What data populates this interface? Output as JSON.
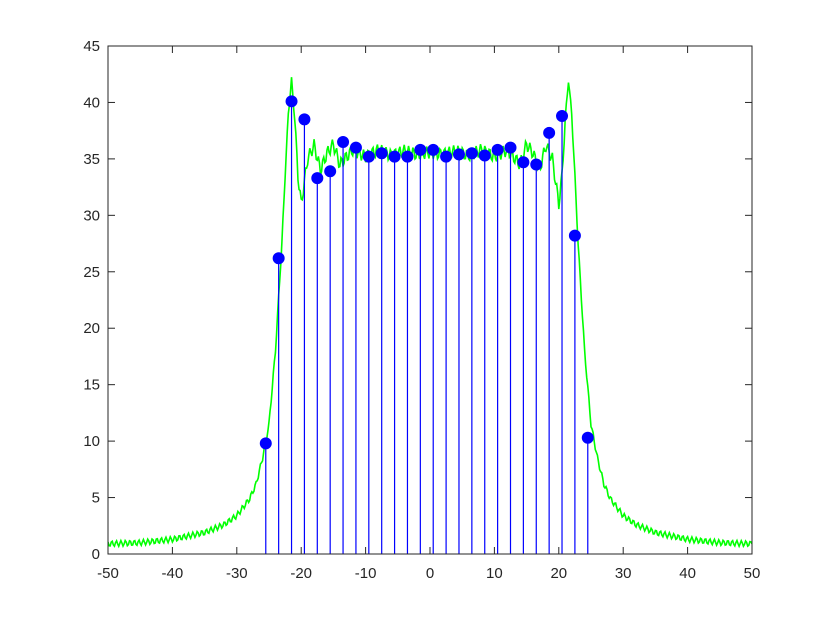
{
  "chart_data": {
    "type": "stem",
    "title": "",
    "xlabel": "",
    "ylabel": "",
    "xlim": [
      -50,
      50
    ],
    "ylim": [
      0,
      45
    ],
    "grid": false,
    "legend": "none",
    "x_ticks": [
      -50,
      -40,
      -30,
      -20,
      -10,
      0,
      10,
      20,
      30,
      40,
      50
    ],
    "y_ticks": [
      0,
      5,
      10,
      15,
      20,
      25,
      30,
      35,
      40,
      45
    ],
    "x_tick_labels": [
      "-50",
      "-40",
      "-30",
      "-20",
      "-10",
      "0",
      "10",
      "20",
      "30",
      "40",
      "50"
    ],
    "y_tick_labels": [
      "0",
      "5",
      "10",
      "15",
      "20",
      "25",
      "30",
      "35",
      "40",
      "45"
    ],
    "stem_series": {
      "color": "#0000ff",
      "x": [
        -25.5,
        -23.5,
        -21.5,
        -19.5,
        -17.5,
        -15.5,
        -13.5,
        -11.5,
        -9.5,
        -7.5,
        -5.5,
        -3.5,
        -1.5,
        0.5,
        2.5,
        4.5,
        6.5,
        8.5,
        10.5,
        12.5,
        14.5,
        16.5,
        18.5,
        20.5,
        22.5,
        24.5
      ],
      "y": [
        9.8,
        26.2,
        40.1,
        38.5,
        33.3,
        33.9,
        36.5,
        36.0,
        35.2,
        35.5,
        35.2,
        35.2,
        35.8,
        35.8,
        35.2,
        35.4,
        35.5,
        35.3,
        35.8,
        36.0,
        34.7,
        34.5,
        37.3,
        38.8,
        28.2,
        10.3
      ]
    },
    "line_series": {
      "color": "#00ff00",
      "x": [
        -50,
        -45,
        -40,
        -35,
        -32,
        -30,
        -28,
        -27,
        -26,
        -25,
        -24,
        -23,
        -22.5,
        -22,
        -21.5,
        -21,
        -20.5,
        -20,
        -19,
        -18,
        -17,
        -16,
        -15,
        -14,
        -12,
        -10,
        -8,
        -6,
        -4,
        -2,
        0,
        2,
        4,
        6,
        8,
        10,
        12,
        14,
        15,
        16,
        17,
        18,
        19,
        20,
        20.5,
        21,
        21.5,
        22,
        22.5,
        23,
        24,
        25,
        26,
        27,
        28,
        30,
        32,
        35,
        40,
        45,
        50
      ],
      "y": [
        0.9,
        1.0,
        1.3,
        1.9,
        2.6,
        3.4,
        4.9,
        6.2,
        8.5,
        11.5,
        18.0,
        27.5,
        33.5,
        39.0,
        42.0,
        38.5,
        33.5,
        31.0,
        35.0,
        36.2,
        34.0,
        35.5,
        36.3,
        34.5,
        35.8,
        35.2,
        35.8,
        35.3,
        35.7,
        35.4,
        35.6,
        35.4,
        35.7,
        35.3,
        35.8,
        35.2,
        35.8,
        34.5,
        36.3,
        35.5,
        34.0,
        36.2,
        35.0,
        31.0,
        33.5,
        38.5,
        42.0,
        39.0,
        33.5,
        27.5,
        18.0,
        11.5,
        8.5,
        6.2,
        4.9,
        3.4,
        2.6,
        1.9,
        1.3,
        1.0,
        0.9
      ]
    }
  }
}
